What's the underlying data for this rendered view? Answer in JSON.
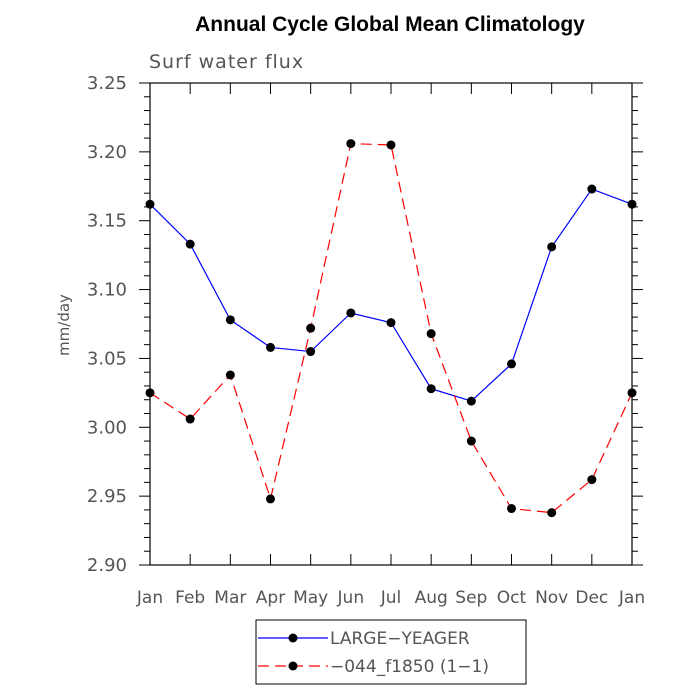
{
  "chart_data": {
    "type": "line",
    "title": "Annual Cycle Global Mean Climatology",
    "subtitle": "Surf water flux",
    "xlabel": "",
    "ylabel": "mm/day",
    "categories": [
      "Jan",
      "Feb",
      "Mar",
      "Apr",
      "May",
      "Jun",
      "Jul",
      "Aug",
      "Sep",
      "Oct",
      "Nov",
      "Dec",
      "Jan"
    ],
    "ylim": [
      2.9,
      3.25
    ],
    "yticks": [
      2.9,
      2.95,
      3.0,
      3.05,
      3.1,
      3.15,
      3.2,
      3.25
    ],
    "ytick_labels": [
      "2.90",
      "2.95",
      "3.00",
      "3.05",
      "3.10",
      "3.15",
      "3.20",
      "3.25"
    ],
    "legend_position": "bottom-center",
    "series": [
      {
        "name": "LARGE−YEAGER",
        "color": "#0000ff",
        "dash": "solid",
        "values": [
          3.162,
          3.133,
          3.078,
          3.058,
          3.055,
          3.083,
          3.076,
          3.028,
          3.019,
          3.046,
          3.131,
          3.173,
          3.162
        ]
      },
      {
        "name": "−044_f1850 (1−1)",
        "color": "#ff0000",
        "dash": "dashed",
        "values": [
          3.025,
          3.006,
          3.038,
          2.948,
          3.072,
          3.206,
          3.205,
          3.068,
          2.99,
          2.941,
          2.938,
          2.962,
          3.025
        ]
      }
    ]
  }
}
